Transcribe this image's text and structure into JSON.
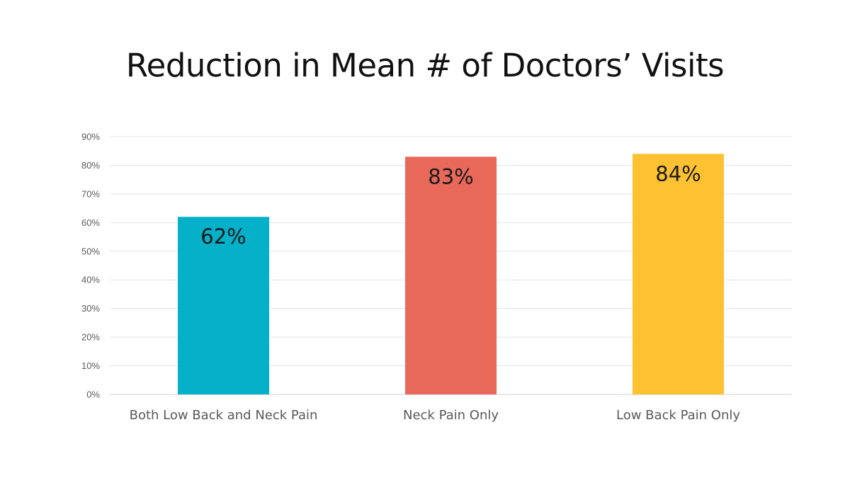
{
  "chart_data": {
    "type": "bar",
    "title": "Reduction in Mean # of Doctors’ Visits",
    "categories": [
      "Both Low Back and Neck Pain",
      "Neck Pain Only",
      "Low Back Pain Only"
    ],
    "values": [
      62,
      83,
      84
    ],
    "value_labels": [
      "62%",
      "83%",
      "84%"
    ],
    "colors": [
      "#05B0C9",
      "#E8685A",
      "#FDC132"
    ],
    "ylim": [
      0,
      90
    ],
    "yticks": [
      0,
      10,
      20,
      30,
      40,
      50,
      60,
      70,
      80,
      90
    ],
    "ytick_suffix": "%",
    "grid": true,
    "legend": "none",
    "xlabel": "",
    "ylabel": ""
  }
}
